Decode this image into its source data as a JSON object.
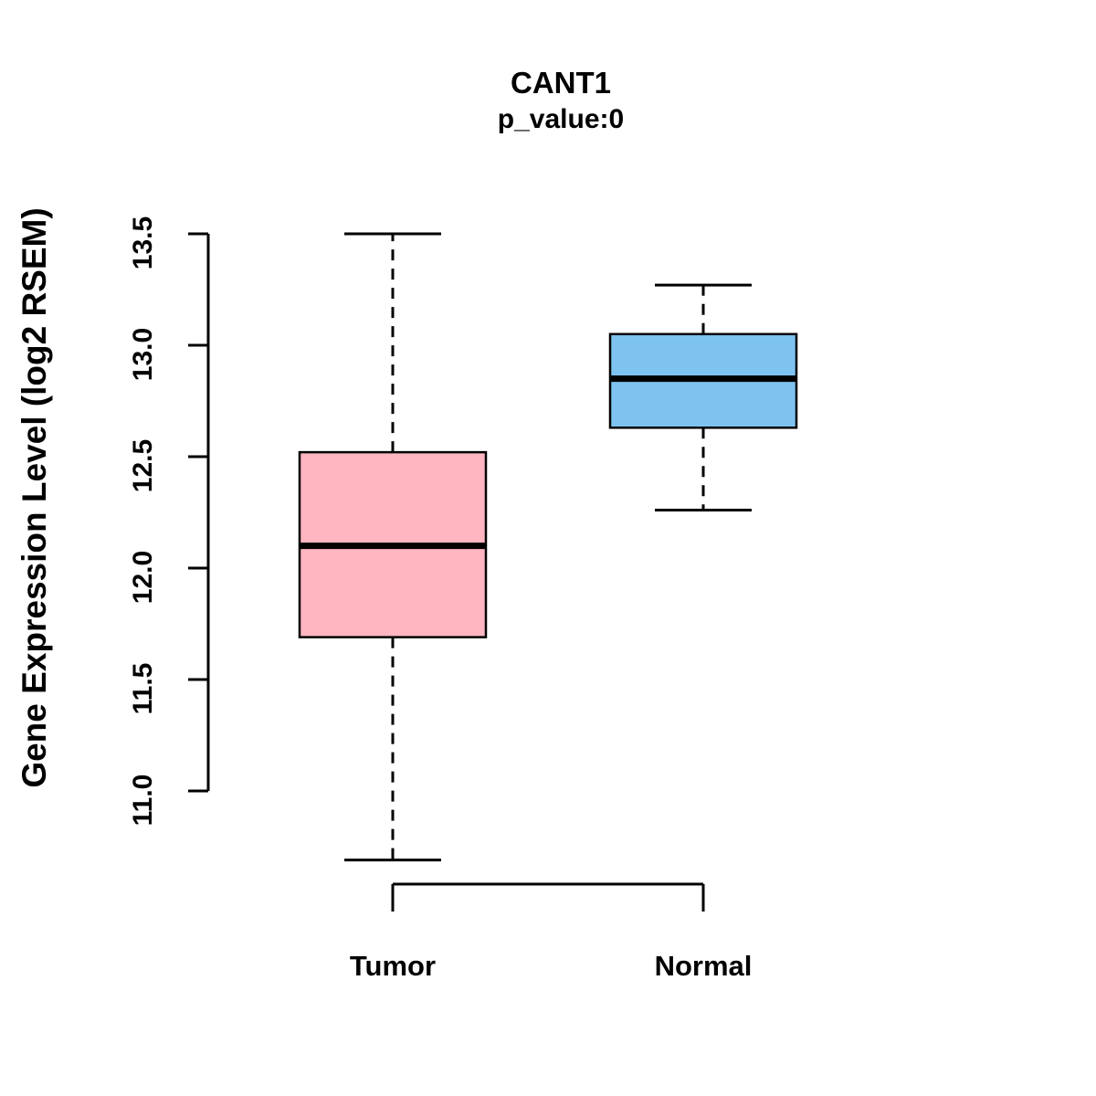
{
  "title": "CANT1",
  "subtitle": "p_value:0",
  "y_axis": {
    "label": "Gene Expression Level (log2 RSEM)",
    "tick_labels": [
      "11.0",
      "11.5",
      "12.0",
      "12.5",
      "13.0",
      "13.5"
    ],
    "tick_values": [
      11.0,
      11.5,
      12.0,
      12.5,
      13.0,
      13.5
    ]
  },
  "chart_data": {
    "type": "boxplot",
    "title": "CANT1",
    "subtitle": "p_value:0",
    "ylabel": "Gene Expression Level (log2 RSEM)",
    "ylim": [
      10.6,
      13.6
    ],
    "grid": false,
    "categories": [
      "Tumor",
      "Normal"
    ],
    "series": [
      {
        "name": "Tumor",
        "whisker_low": 10.69,
        "q1": 11.69,
        "median": 12.1,
        "q3": 12.52,
        "whisker_high": 13.5,
        "color": "#FFB6C1"
      },
      {
        "name": "Normal",
        "whisker_low": 12.26,
        "q1": 12.63,
        "median": 12.85,
        "q3": 13.05,
        "whisker_high": 13.27,
        "color": "#7EC3F0"
      }
    ]
  }
}
